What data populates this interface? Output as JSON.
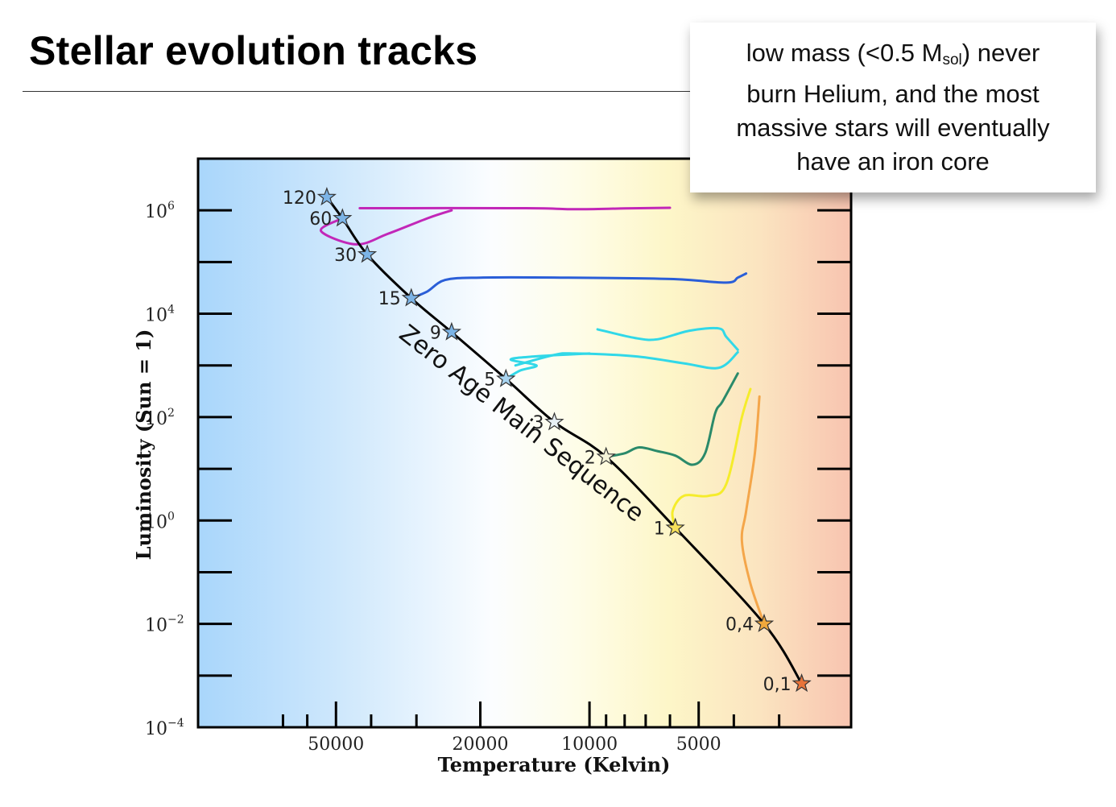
{
  "slide": {
    "title": "Stellar evolution tracks"
  },
  "callout": {
    "line1_pre": "low mass (<0.5 M",
    "line1_sub": "sol",
    "line1_post": ") never",
    "line2": "burn Helium, and the most",
    "line3": "massive stars will eventually",
    "line4": "have an iron core"
  },
  "chart_data": {
    "type": "line",
    "xlabel": "Temperature (Kelvin)",
    "ylabel": "Luminosity (Sun = 1)",
    "x_scale": "log-reversed",
    "y_scale": "log",
    "xlim": [
      120000,
      1900
    ],
    "ylim": [
      0.0001,
      10000000
    ],
    "x_tick_labels": [
      "50000",
      "20000",
      "10000",
      "5000"
    ],
    "x_tick_values": [
      50000,
      20000,
      10000,
      5000
    ],
    "y_tick_labels": [
      {
        "base": "10",
        "exp": "6",
        "value": 1000000
      },
      {
        "base": "10",
        "exp": "4",
        "value": 10000
      },
      {
        "base": "10",
        "exp": "2",
        "value": 100
      },
      {
        "base": "10",
        "exp": "0",
        "value": 1
      },
      {
        "base": "10",
        "exp": "−2",
        "value": 0.01
      },
      {
        "base": "10",
        "exp": "−4",
        "value": 0.0001
      }
    ],
    "zams_label": "Zero Age Main Sequence",
    "zams_points": [
      {
        "label": "120",
        "temperature": 53000,
        "luminosity": 1800000,
        "star_color": "#7cb4e6"
      },
      {
        "label": "60",
        "temperature": 48000,
        "luminosity": 700000,
        "star_color": "#7cb4e6"
      },
      {
        "label": "30",
        "temperature": 41000,
        "luminosity": 140000,
        "star_color": "#7cb4e6"
      },
      {
        "label": "15",
        "temperature": 31000,
        "luminosity": 20000,
        "star_color": "#7cb4e6"
      },
      {
        "label": "9",
        "temperature": 24000,
        "luminosity": 4400,
        "star_color": "#7cb4e6"
      },
      {
        "label": "5",
        "temperature": 17000,
        "luminosity": 550,
        "star_color": "#a8d4f0"
      },
      {
        "label": "3",
        "temperature": 12500,
        "luminosity": 80,
        "star_color": "#e8f0f4"
      },
      {
        "label": "2",
        "temperature": 9000,
        "luminosity": 17,
        "star_color": "#f4f4d8"
      },
      {
        "label": "1",
        "temperature": 5800,
        "luminosity": 0.72,
        "star_color": "#f6e05a"
      },
      {
        "label": "0,4",
        "temperature": 3300,
        "luminosity": 0.01,
        "star_color": "#f0a83c"
      },
      {
        "label": "0,1",
        "temperature": 2600,
        "luminosity": 0.0007,
        "star_color": "#e8743a"
      }
    ],
    "tracks": [
      {
        "label": "120",
        "color": "#c227b8",
        "points": [
          [
            43000,
            1100000
          ],
          [
            15000,
            1100000
          ],
          [
            11000,
            1050000
          ],
          [
            8000,
            1090000
          ],
          [
            6000,
            1120000
          ]
        ]
      },
      {
        "label": "60",
        "color": "#c227b8",
        "points": [
          [
            48000,
            700000
          ],
          [
            55000,
            400000
          ],
          [
            44000,
            220000
          ],
          [
            36000,
            350000
          ],
          [
            28000,
            700000
          ],
          [
            24000,
            1000000
          ]
        ]
      },
      {
        "label": "15",
        "color": "#2a5ed8",
        "points": [
          [
            31000,
            20000
          ],
          [
            28000,
            27000
          ],
          [
            25000,
            45000
          ],
          [
            20000,
            50000
          ],
          [
            12000,
            50000
          ],
          [
            6000,
            47000
          ],
          [
            4200,
            40000
          ],
          [
            3900,
            50000
          ],
          [
            3700,
            60000
          ]
        ]
      },
      {
        "label": "9",
        "color": "#31d8e8",
        "points": [
          [
            16000,
            1000
          ],
          [
            12500,
            1600
          ],
          [
            11000,
            1700
          ],
          [
            7500,
            1500
          ],
          [
            5500,
            1100
          ],
          [
            4400,
            900
          ],
          [
            3900,
            1800
          ]
        ]
      },
      {
        "label": "9-loop",
        "color": "#31d8e8",
        "points": [
          [
            9500,
            5000
          ],
          [
            7500,
            3400
          ],
          [
            6500,
            3200
          ],
          [
            5300,
            4700
          ],
          [
            4400,
            5200
          ],
          [
            4200,
            3600
          ],
          [
            3900,
            2000
          ]
        ]
      },
      {
        "label": "5",
        "color": "#31d8e8",
        "points": [
          [
            17000,
            550
          ],
          [
            15500,
            800
          ],
          [
            14000,
            1000
          ],
          [
            16500,
            1300
          ],
          [
            14000,
            1500
          ],
          [
            10000,
            1700
          ]
        ]
      },
      {
        "label": "2",
        "color": "#2a8a6a",
        "points": [
          [
            9000,
            17
          ],
          [
            8000,
            20
          ],
          [
            7300,
            26
          ],
          [
            6500,
            22
          ],
          [
            5800,
            18
          ],
          [
            5200,
            12
          ],
          [
            4800,
            20
          ],
          [
            4500,
            120
          ],
          [
            4300,
            200
          ],
          [
            3900,
            700
          ]
        ]
      },
      {
        "label": "1",
        "color": "#f5ec2b",
        "points": [
          [
            5800,
            0.72
          ],
          [
            5900,
            1.5
          ],
          [
            5500,
            3
          ],
          [
            4700,
            3
          ],
          [
            4200,
            5
          ],
          [
            3800,
            100
          ],
          [
            3600,
            350
          ]
        ]
      },
      {
        "label": "0,4",
        "color": "#f4a64a",
        "points": [
          [
            3300,
            0.01
          ],
          [
            3600,
            0.06
          ],
          [
            3800,
            0.4
          ],
          [
            3700,
            1.5
          ],
          [
            3500,
            20
          ],
          [
            3400,
            250
          ]
        ]
      }
    ]
  }
}
